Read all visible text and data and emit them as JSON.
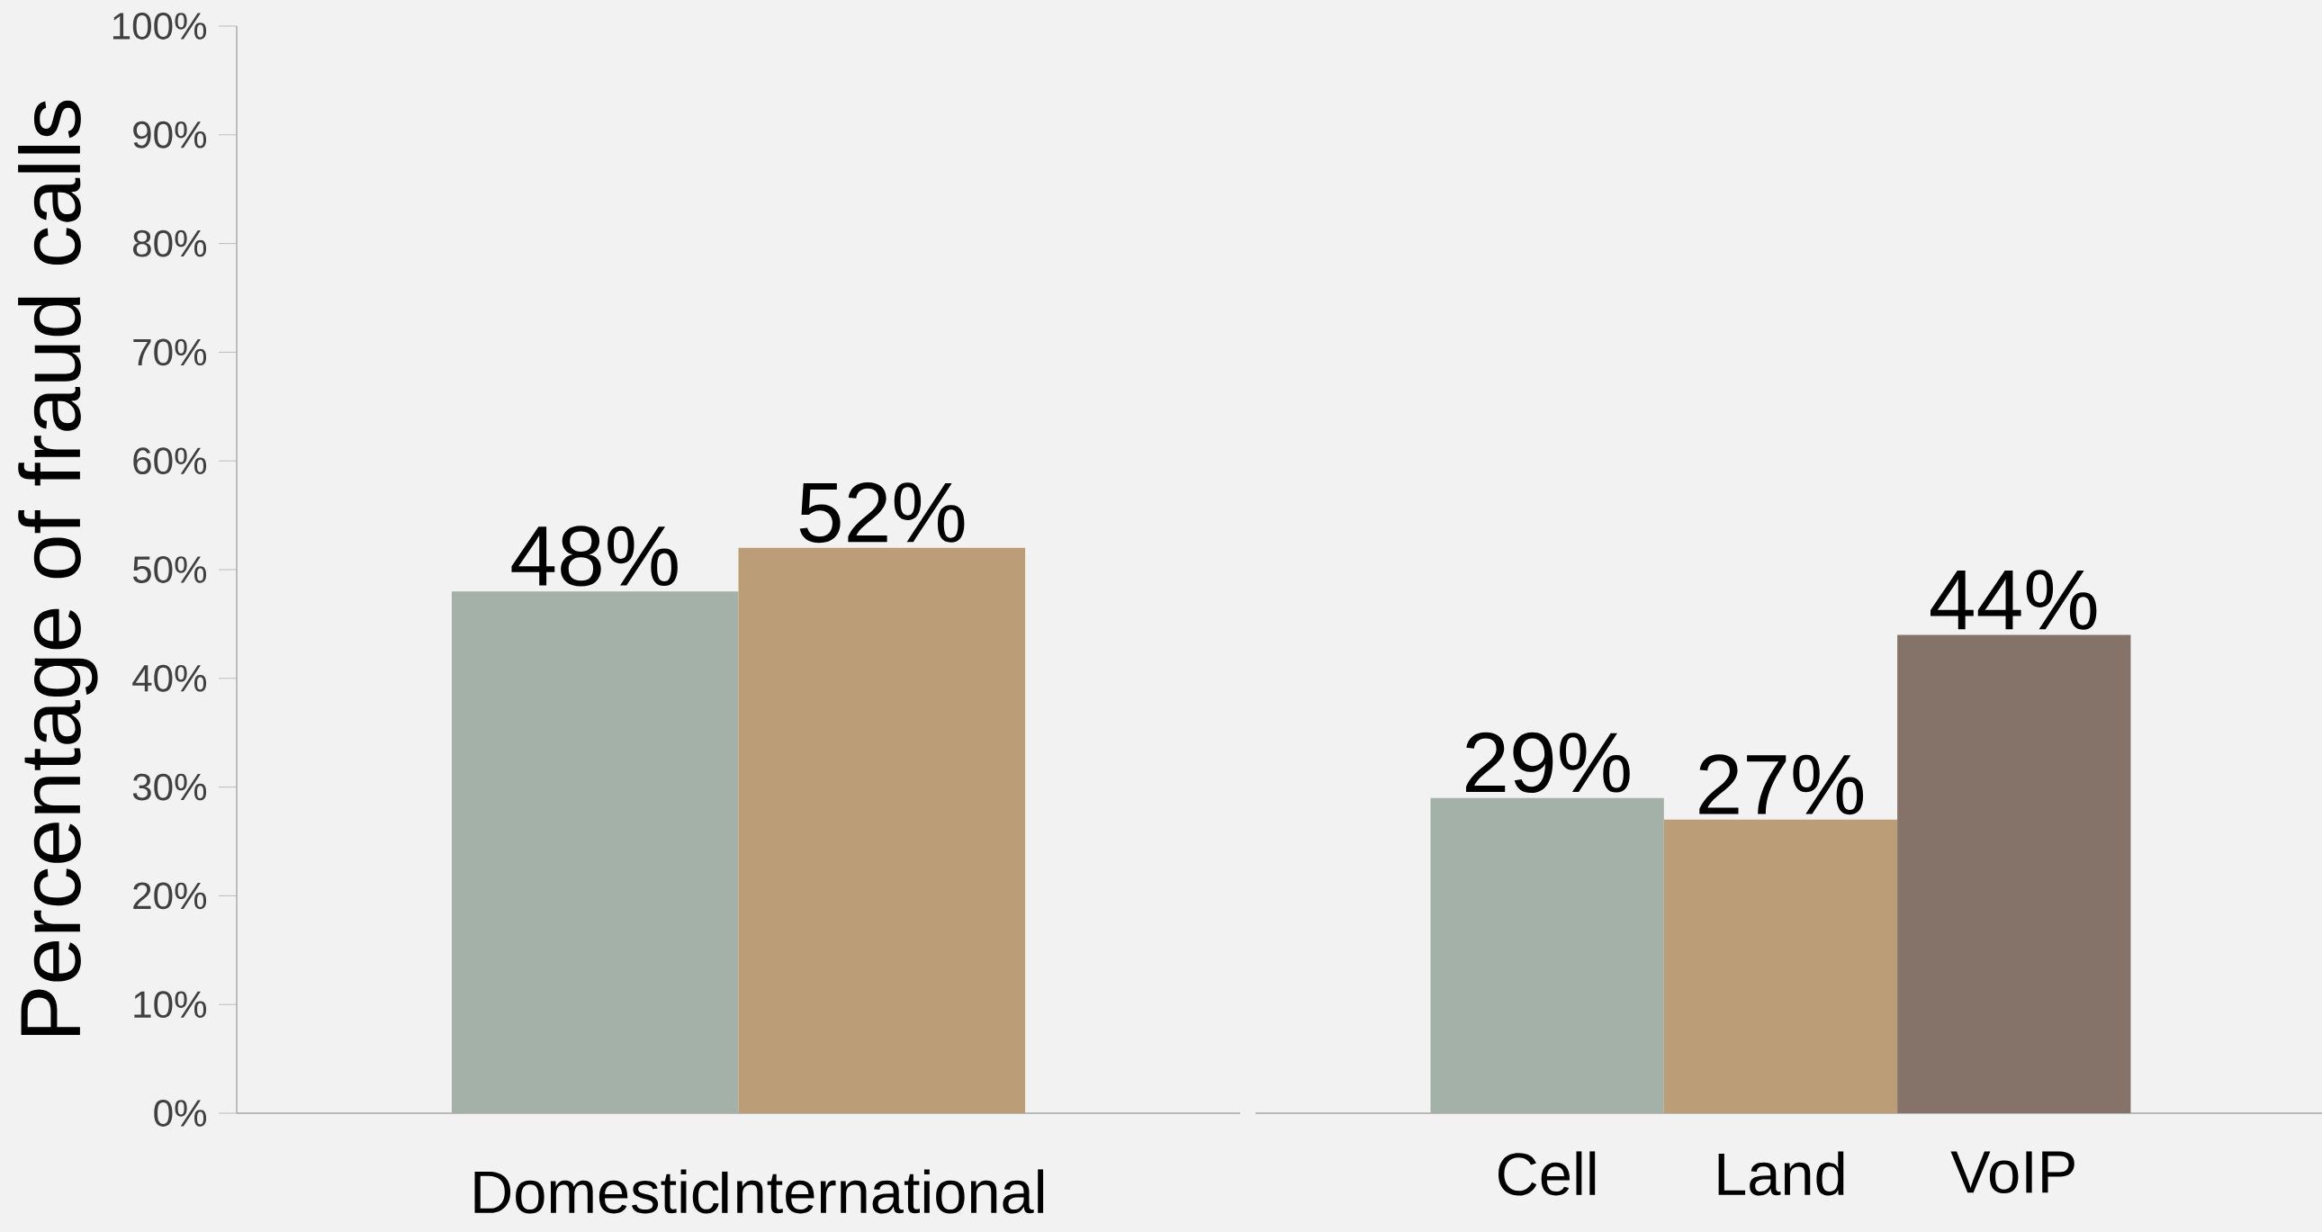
{
  "chart_data": [
    {
      "type": "bar",
      "ylabel": "Percentage of fraud calls",
      "categories": [
        "Domestic",
        "International"
      ],
      "values": [
        48,
        52
      ],
      "value_labels": [
        "48%",
        "52%"
      ],
      "colors": [
        "#a3b1a8",
        "#bb9e77"
      ],
      "ylim": [
        0,
        100
      ],
      "yticks": [
        {
          "value": 0,
          "label": "0%"
        },
        {
          "value": 10,
          "label": "10%"
        },
        {
          "value": 20,
          "label": "20%"
        },
        {
          "value": 30,
          "label": "30%"
        },
        {
          "value": 40,
          "label": "40%"
        },
        {
          "value": 50,
          "label": "50%"
        },
        {
          "value": 60,
          "label": "60%"
        },
        {
          "value": 70,
          "label": "70%"
        },
        {
          "value": 80,
          "label": "80%"
        },
        {
          "value": 90,
          "label": "90%"
        },
        {
          "value": 100,
          "label": "100%"
        }
      ],
      "grid": false
    },
    {
      "type": "bar",
      "categories": [
        "Cell",
        "Land",
        "VoIP"
      ],
      "values": [
        29,
        27,
        44
      ],
      "value_labels": [
        "29%",
        "27%",
        "44%"
      ],
      "colors": [
        "#a3b1a8",
        "#bb9e77",
        "#85736a"
      ],
      "ylim": [
        0,
        100
      ],
      "tick_labels": "x",
      "grid": false
    }
  ]
}
